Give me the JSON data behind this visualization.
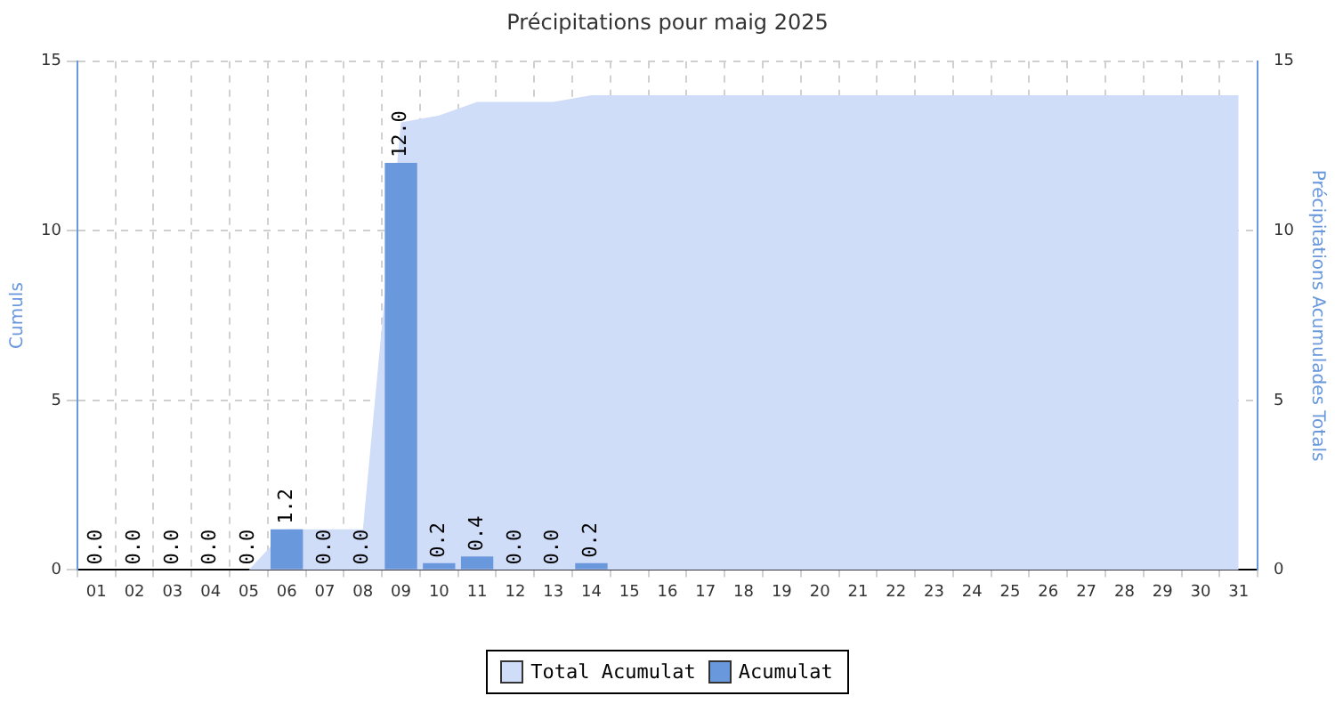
{
  "chart_data": {
    "type": "bar",
    "title": "Précipitations pour maig 2025",
    "ylabel": "Cumuls",
    "y2label": "Précipitations Acumulades Totals",
    "categories": [
      "01",
      "02",
      "03",
      "04",
      "05",
      "06",
      "07",
      "08",
      "09",
      "10",
      "11",
      "12",
      "13",
      "14",
      "15",
      "16",
      "17",
      "18",
      "19",
      "20",
      "21",
      "22",
      "23",
      "24",
      "25",
      "26",
      "27",
      "28",
      "29",
      "30",
      "31"
    ],
    "series": [
      {
        "name": "Total Acumulat",
        "type": "area",
        "axis": "y2",
        "color": "#d0ddf8",
        "values": [
          0,
          0,
          0,
          0,
          0,
          1.2,
          1.2,
          1.2,
          13.2,
          13.4,
          13.8,
          13.8,
          13.8,
          14.0,
          14.0,
          14.0,
          14.0,
          14.0,
          14.0,
          14.0,
          14.0,
          14.0,
          14.0,
          14.0,
          14.0,
          14.0,
          14.0,
          14.0,
          14.0,
          14.0,
          14.0
        ]
      },
      {
        "name": "Acumulat",
        "color": "#6a98dc",
        "values": [
          0,
          0,
          0,
          0,
          0,
          1.2,
          0,
          0,
          12.0,
          0.2,
          0.4,
          0,
          0,
          0.2,
          null,
          null,
          null,
          null,
          null,
          null,
          null,
          null,
          null,
          null,
          null,
          null,
          null,
          null,
          null,
          null,
          null
        ],
        "value_labels": [
          "0.0",
          "0.0",
          "0.0",
          "0.0",
          "0.0",
          "1.2",
          "0.0",
          "0.0",
          "12.0",
          "0.2",
          "0.4",
          "0.0",
          "0.0",
          "0.2",
          null,
          null,
          null,
          null,
          null,
          null,
          null,
          null,
          null,
          null,
          null,
          null,
          null,
          null,
          null,
          null,
          null
        ]
      }
    ],
    "ylim": [
      0,
      15
    ],
    "yticks": [
      0,
      5,
      10,
      15
    ],
    "y2lim": [
      0,
      15
    ],
    "y2ticks": [
      0,
      5,
      10,
      15
    ],
    "grid": true,
    "line_style": "dashed",
    "legend": "bottom"
  }
}
